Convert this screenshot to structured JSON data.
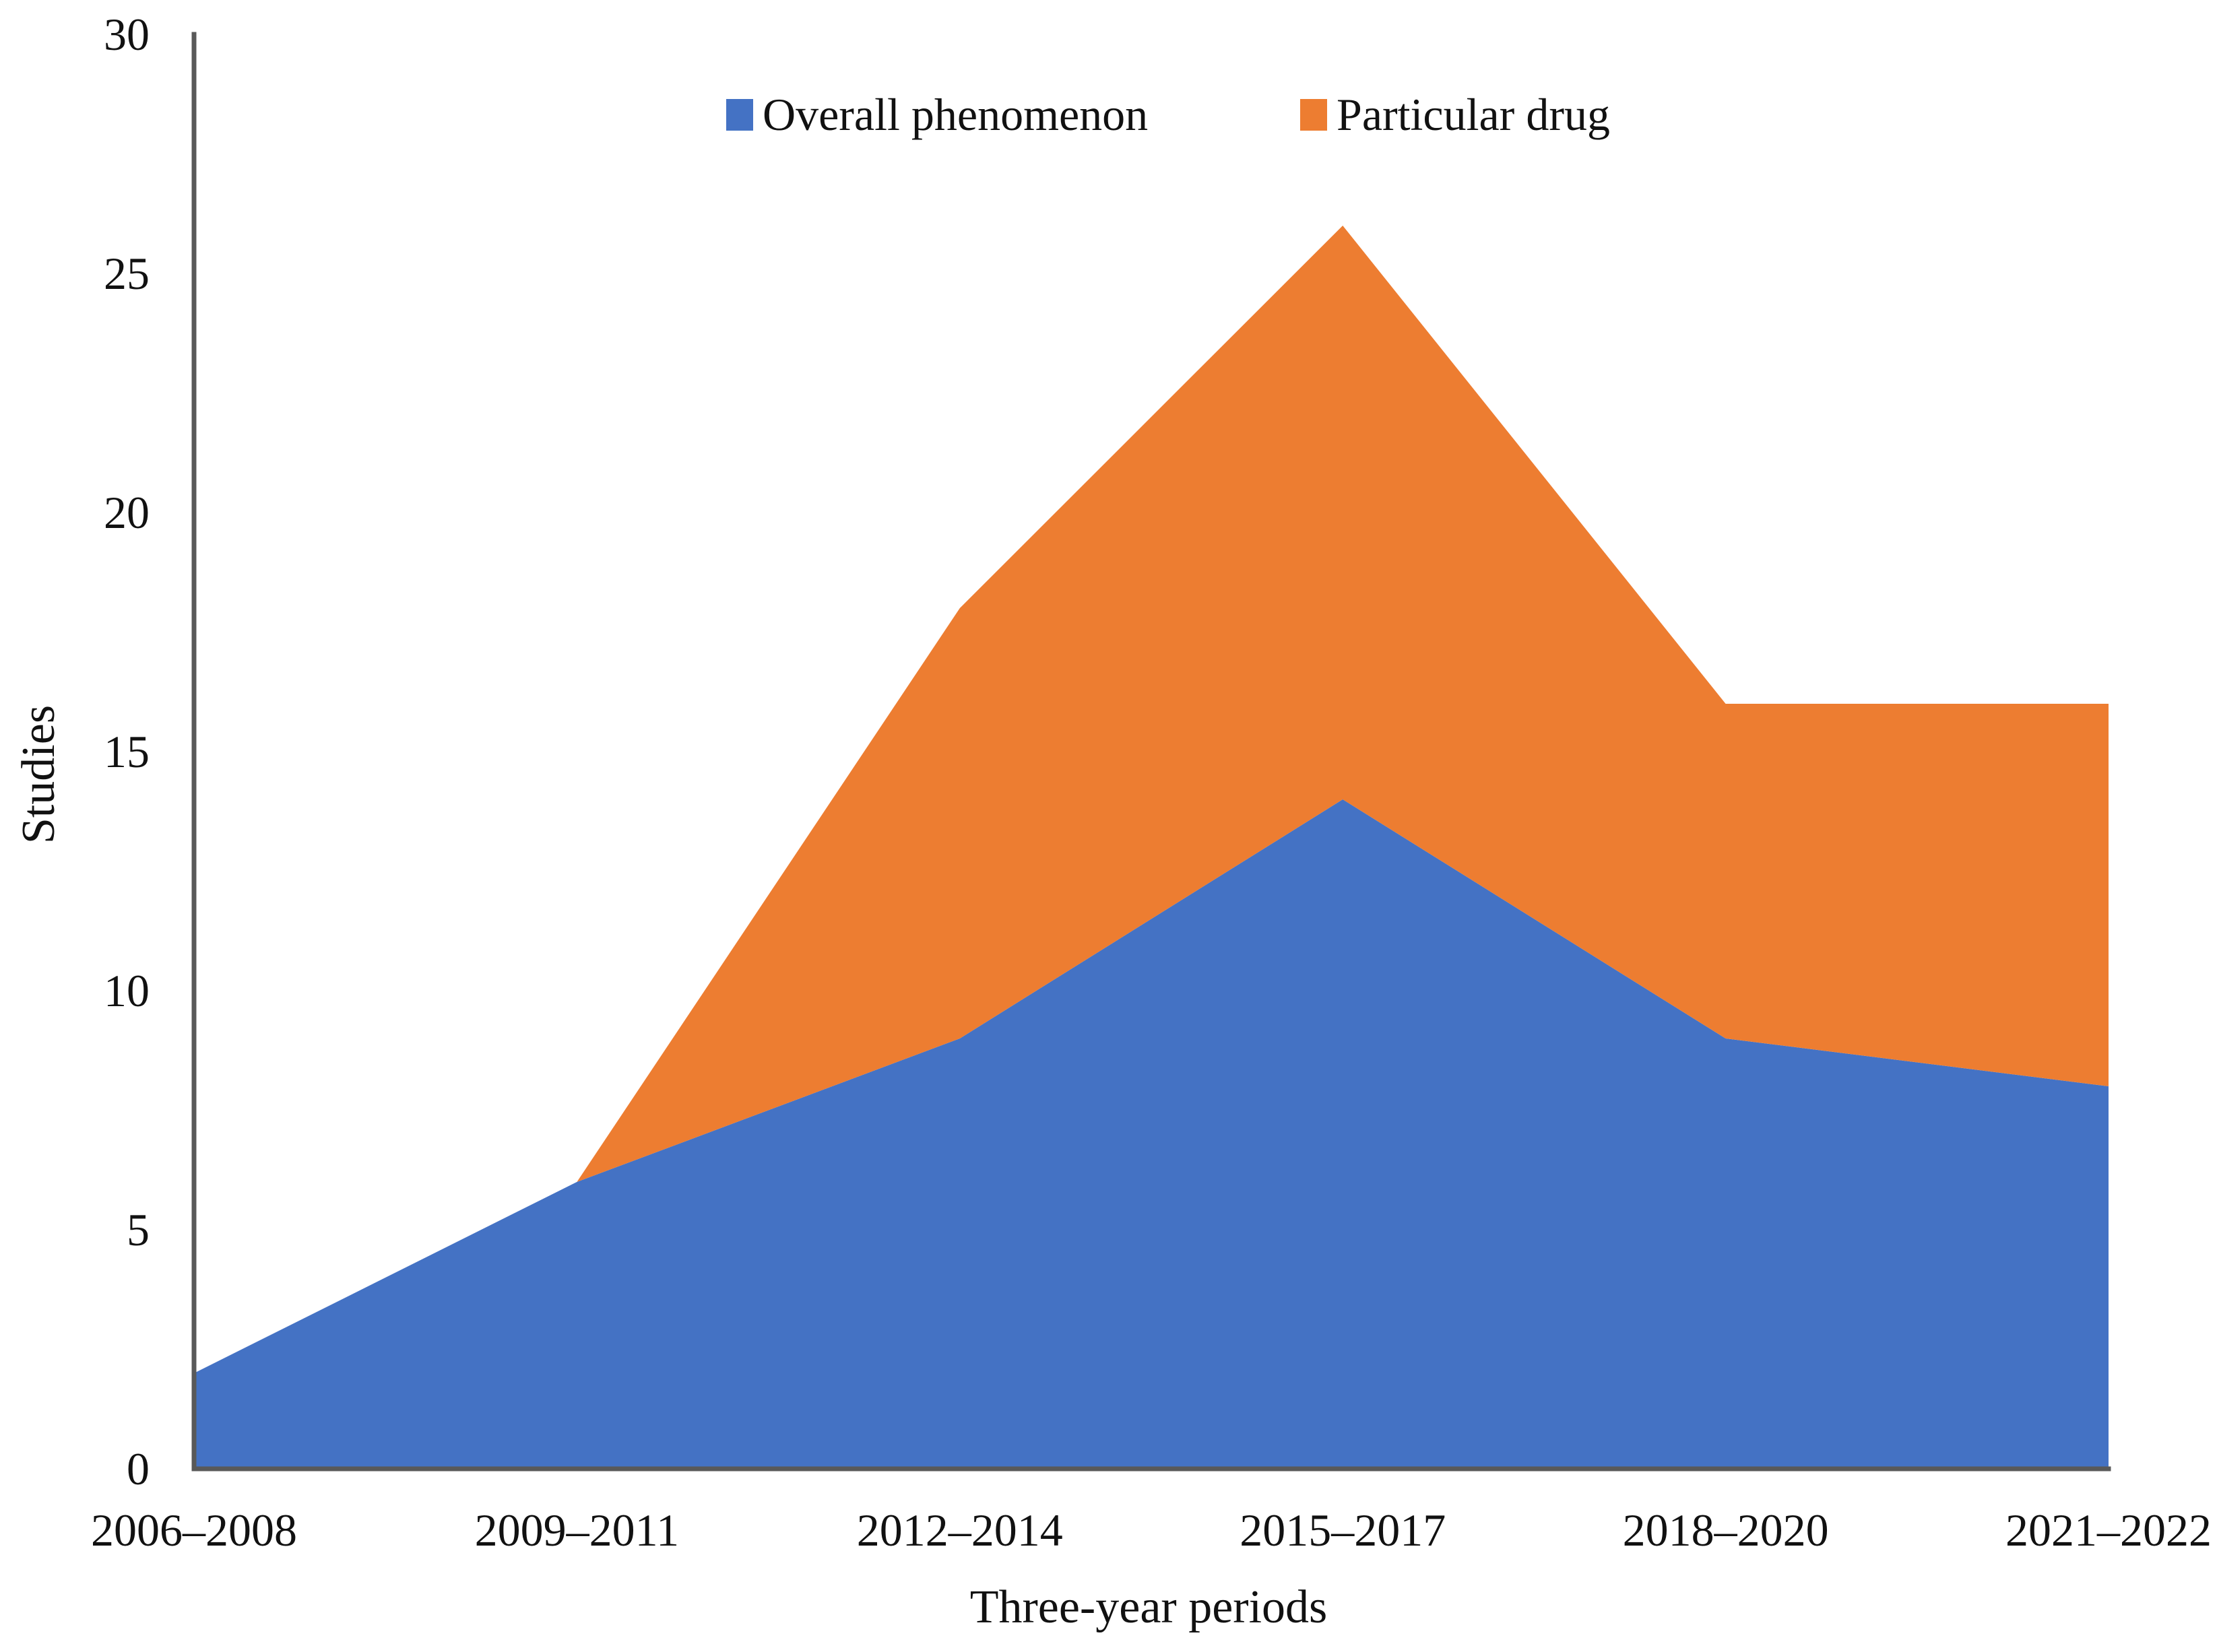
{
  "chart_data": {
    "type": "area",
    "stacked": true,
    "title": "",
    "xlabel": "Three-year periods",
    "ylabel": "Studies",
    "categories": [
      "2006–2008",
      "2009–2011",
      "2012–2014",
      "2015–2017",
      "2018–2020",
      "2021–2022"
    ],
    "series": [
      {
        "name": "Overall phenomenon",
        "color": "#4472C4",
        "values": [
          2,
          6,
          9,
          14,
          9,
          8
        ]
      },
      {
        "name": "Particular drug",
        "color": "#ED7D31",
        "values": [
          0,
          0,
          9,
          12,
          7,
          8
        ]
      }
    ],
    "stacked_totals": [
      2,
      6,
      18,
      26,
      16,
      16
    ],
    "ylim": [
      0,
      30
    ],
    "yticks": [
      0,
      5,
      10,
      15,
      20,
      25,
      30
    ],
    "grid": false,
    "legend_position": "top-center",
    "axis_color": "#595959",
    "text_color": "#111111",
    "background_color": "#ffffff"
  }
}
